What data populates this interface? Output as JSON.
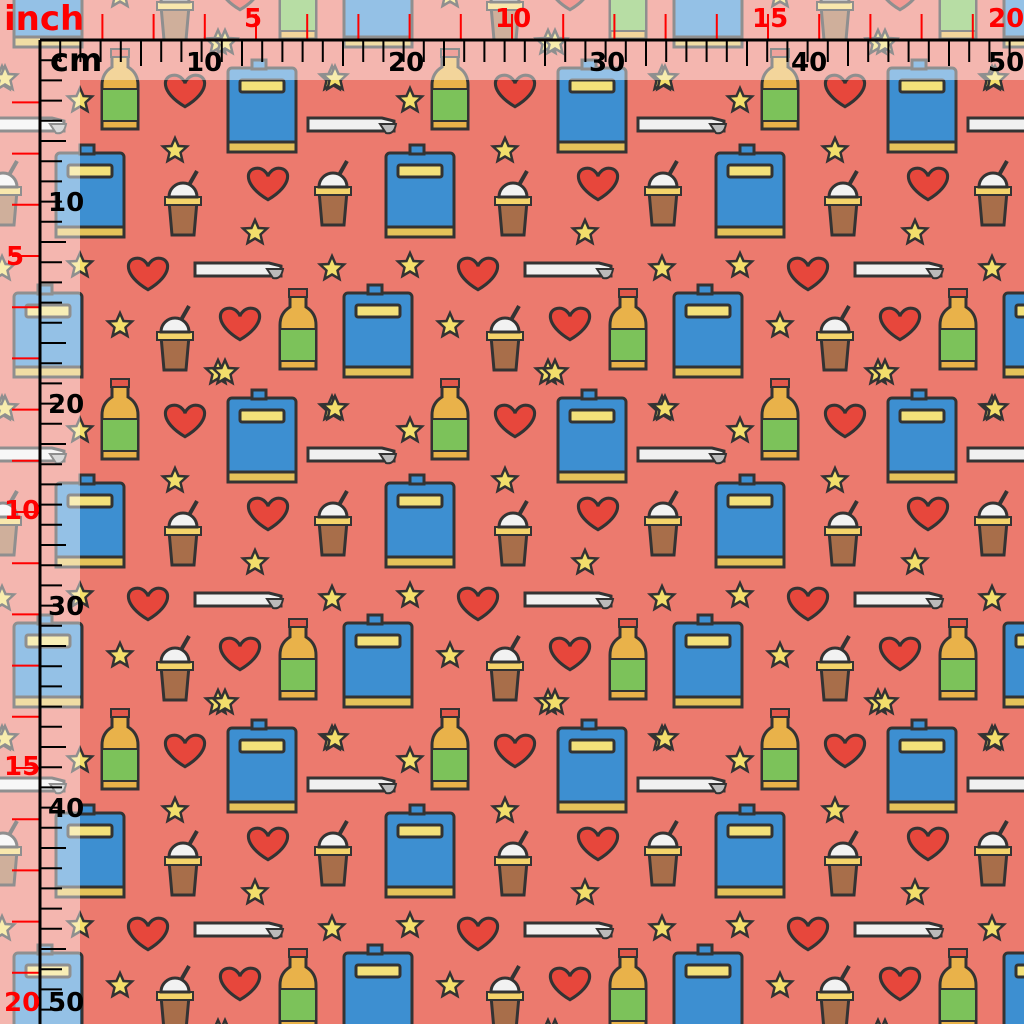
{
  "fabric": {
    "background_color": "#ec7a6e",
    "motifs": [
      "notebook-icon",
      "bottle-icon",
      "heart-icon",
      "ice-cream-cup-icon",
      "straw-bar-icon",
      "star-icon"
    ]
  },
  "ruler": {
    "inch_label": "inch",
    "cm_label": "cm",
    "inch_color": "#ff0000",
    "cm_color": "#000000",
    "top_inch_numbers": [
      "5",
      "10",
      "15",
      "20"
    ],
    "top_cm_numbers": [
      "10",
      "20",
      "30",
      "40",
      "50"
    ],
    "left_inch_numbers": [
      "5",
      "10",
      "15",
      "20"
    ],
    "left_cm_numbers": [
      "10",
      "20",
      "30",
      "40",
      "50"
    ]
  }
}
